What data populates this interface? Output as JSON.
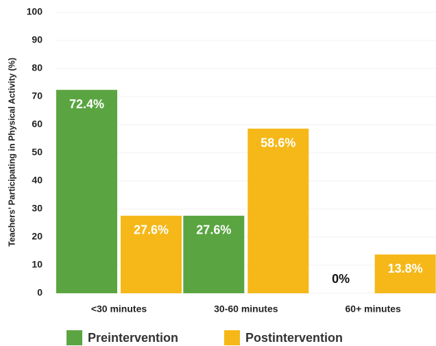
{
  "chart_data": {
    "type": "bar",
    "y_label": "Teachers’ Participating in Physical Activity (%)",
    "categories": [
      "<30 minutes",
      "30-60 minutes",
      "60+ minutes"
    ],
    "series": [
      {
        "name": "Preintervention",
        "color": "#5aa541",
        "values": [
          72.4,
          27.6,
          0
        ],
        "value_labels": [
          "72.4%",
          "27.6%",
          "0%"
        ]
      },
      {
        "name": "Postintervention",
        "color": "#f5b818",
        "values": [
          27.6,
          58.6,
          13.8
        ],
        "value_labels": [
          "27.6%",
          "58.6%",
          "13.8%"
        ]
      }
    ],
    "ylim": [
      0,
      100
    ],
    "yticks": [
      0,
      10,
      20,
      30,
      40,
      50,
      60,
      70,
      80,
      90,
      100
    ],
    "grid": true,
    "legend": "bottom"
  }
}
